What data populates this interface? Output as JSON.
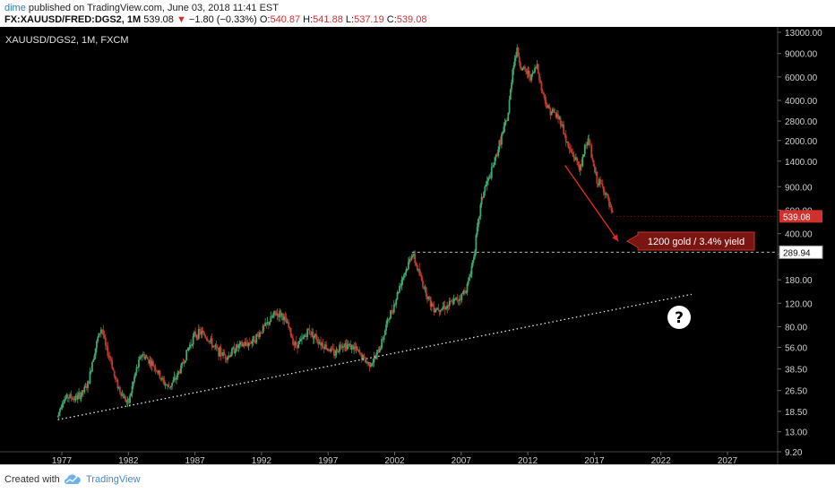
{
  "header": {
    "author": "dime",
    "published": "published on TradingView.com, June 03, 2018 11:41 EST",
    "symbol": "FX:XAUUSD/FRED:DGS2, 1M",
    "last": "539.08",
    "change": "−1.80 (−0.33%)",
    "o_label": "O:",
    "o_val": "540.87",
    "h_label": "H:",
    "h_val": "541.88",
    "l_label": "L:",
    "l_val": "537.19",
    "c_label": "C:",
    "c_val": "539.08"
  },
  "footer": {
    "created_with": "Created with",
    "brand": "TradingView"
  },
  "colors": {
    "up": "#3fa86b",
    "down": "#c0392b",
    "price_tag": "#d0312d",
    "axis_text": "#cfcfcf",
    "dotted": "#e6e6e6"
  },
  "chart_data": {
    "type": "candlestick",
    "title": "XAUUSD/DGS2, 1M, FXCM",
    "y_scale": "log",
    "y_ticks": [
      "13000.00",
      "9000.00",
      "6000.00",
      "4000.00",
      "2800.00",
      "2000.00",
      "1400.00",
      "900.00",
      "600.00",
      "400.00",
      "280.00",
      "180.00",
      "120.00",
      "80.00",
      "56.00",
      "38.50",
      "26.50",
      "18.50",
      "13.00",
      "9.20"
    ],
    "x_ticks": [
      "1977",
      "1982",
      "1987",
      "1992",
      "1997",
      "2002",
      "2007",
      "2012",
      "2017",
      "2022",
      "2027"
    ],
    "x_range": [
      1976,
      2031
    ],
    "price_tag": "539.08",
    "level_tag": "289.94",
    "level_value": 289.94,
    "annotation": "1200 gold / 3.4% yield",
    "question_mark": "?",
    "approx_closes": [
      [
        1976.7,
        17
      ],
      [
        1977.0,
        22
      ],
      [
        1977.5,
        24
      ],
      [
        1978.0,
        23
      ],
      [
        1978.5,
        25
      ],
      [
        1979.0,
        30
      ],
      [
        1979.3,
        45
      ],
      [
        1979.7,
        65
      ],
      [
        1980.0,
        80
      ],
      [
        1980.3,
        55
      ],
      [
        1980.7,
        45
      ],
      [
        1981.0,
        32
      ],
      [
        1981.5,
        25
      ],
      [
        1982.0,
        21
      ],
      [
        1982.5,
        35
      ],
      [
        1983.0,
        50
      ],
      [
        1983.5,
        45
      ],
      [
        1984.0,
        40
      ],
      [
        1984.5,
        32
      ],
      [
        1985.0,
        28
      ],
      [
        1985.5,
        32
      ],
      [
        1986.0,
        40
      ],
      [
        1986.5,
        55
      ],
      [
        1987.0,
        70
      ],
      [
        1987.5,
        72
      ],
      [
        1988.0,
        65
      ],
      [
        1988.5,
        55
      ],
      [
        1989.0,
        50
      ],
      [
        1989.5,
        48
      ],
      [
        1990.0,
        55
      ],
      [
        1990.5,
        58
      ],
      [
        1991.0,
        60
      ],
      [
        1991.5,
        65
      ],
      [
        1992.0,
        75
      ],
      [
        1992.5,
        85
      ],
      [
        1993.0,
        100
      ],
      [
        1993.5,
        100
      ],
      [
        1994.0,
        80
      ],
      [
        1994.5,
        58
      ],
      [
        1995.0,
        62
      ],
      [
        1995.5,
        75
      ],
      [
        1996.0,
        68
      ],
      [
        1996.5,
        60
      ],
      [
        1997.0,
        55
      ],
      [
        1997.5,
        50
      ],
      [
        1998.0,
        60
      ],
      [
        1998.5,
        58
      ],
      [
        1999.0,
        55
      ],
      [
        1999.5,
        48
      ],
      [
        2000.0,
        42
      ],
      [
        2000.5,
        45
      ],
      [
        2001.0,
        60
      ],
      [
        2001.5,
        90
      ],
      [
        2002.0,
        120
      ],
      [
        2002.5,
        180
      ],
      [
        2003.0,
        230
      ],
      [
        2003.3,
        290
      ],
      [
        2003.7,
        220
      ],
      [
        2004.0,
        180
      ],
      [
        2004.3,
        150
      ],
      [
        2004.7,
        120
      ],
      [
        2005.0,
        110
      ],
      [
        2005.5,
        112
      ],
      [
        2006.0,
        115
      ],
      [
        2006.5,
        125
      ],
      [
        2007.0,
        135
      ],
      [
        2007.5,
        165
      ],
      [
        2007.9,
        260
      ],
      [
        2008.2,
        420
      ],
      [
        2008.5,
        700
      ],
      [
        2008.8,
        900
      ],
      [
        2009.2,
        1100
      ],
      [
        2009.6,
        1500
      ],
      [
        2010.0,
        2100
      ],
      [
        2010.5,
        3000
      ],
      [
        2010.9,
        7500
      ],
      [
        2011.2,
        9500
      ],
      [
        2011.5,
        7000
      ],
      [
        2011.9,
        6500
      ],
      [
        2012.3,
        6000
      ],
      [
        2012.7,
        7500
      ],
      [
        2013.0,
        5000
      ],
      [
        2013.5,
        3500
      ],
      [
        2014.0,
        3200
      ],
      [
        2014.5,
        2800
      ],
      [
        2015.0,
        1800
      ],
      [
        2015.5,
        1500
      ],
      [
        2016.0,
        1200
      ],
      [
        2016.3,
        1900
      ],
      [
        2016.6,
        2000
      ],
      [
        2016.9,
        1300
      ],
      [
        2017.2,
        1000
      ],
      [
        2017.6,
        900
      ],
      [
        2017.9,
        780
      ],
      [
        2018.2,
        600
      ],
      [
        2018.4,
        539
      ]
    ],
    "trendline": {
      "from": [
        1976.7,
        16
      ],
      "to": [
        2024.3,
        140
      ]
    },
    "arrow": {
      "from": [
        2014.8,
        1300
      ],
      "to": [
        2018.8,
        350
      ]
    },
    "level_line_from": 2003.3
  }
}
